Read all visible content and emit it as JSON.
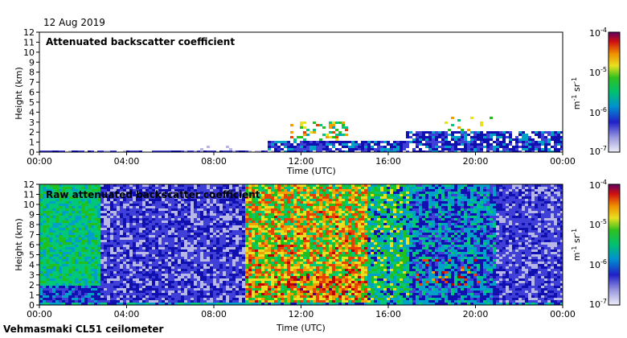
{
  "date": "12 Aug 2019",
  "footer": "Vehmasmaki CL51 ceilometer",
  "colorscale": [
    "#eeeef8",
    "#b8b8e8",
    "#4040d8",
    "#1010b0",
    "#00a0c8",
    "#00c878",
    "#20c020",
    "#e8e020",
    "#f0a000",
    "#e84000",
    "#c00000",
    "#600060"
  ],
  "chart_data": [
    {
      "type": "heatmap",
      "title": "Attenuated backscatter coefficient",
      "xlabel": "Time (UTC)",
      "ylabel": "Height (km)",
      "xlim": [
        0,
        24
      ],
      "ylim": [
        0,
        12
      ],
      "x_ticks": [
        "00:00",
        "04:00",
        "08:00",
        "12:00",
        "16:00",
        "20:00",
        "00:00"
      ],
      "y_ticks": [
        "0",
        "1",
        "2",
        "3",
        "4",
        "5",
        "6",
        "7",
        "8",
        "9",
        "10",
        "11",
        "12"
      ],
      "colorbar": {
        "label": "m-1 sr-1",
        "ticks": [
          "10-4",
          "10-5",
          "10-6",
          "10-7"
        ],
        "range": [
          1e-07,
          0.0001
        ],
        "scale": "log"
      }
    },
    {
      "type": "heatmap",
      "title": "Raw attenuated backscatter coefficient",
      "xlabel": "Time (UTC)",
      "ylabel": "Height (km)",
      "xlim": [
        0,
        24
      ],
      "ylim": [
        0,
        12
      ],
      "x_ticks": [
        "00:00",
        "04:00",
        "08:00",
        "12:00",
        "16:00",
        "20:00",
        "00:00"
      ],
      "y_ticks": [
        "0",
        "1",
        "2",
        "3",
        "4",
        "5",
        "6",
        "7",
        "8",
        "9",
        "10",
        "11",
        "12"
      ],
      "colorbar": {
        "label": "m-1 sr-1",
        "ticks": [
          "10-4",
          "10-5",
          "10-6",
          "10-7"
        ],
        "range": [
          1e-07,
          0.0001
        ],
        "scale": "log"
      }
    }
  ]
}
